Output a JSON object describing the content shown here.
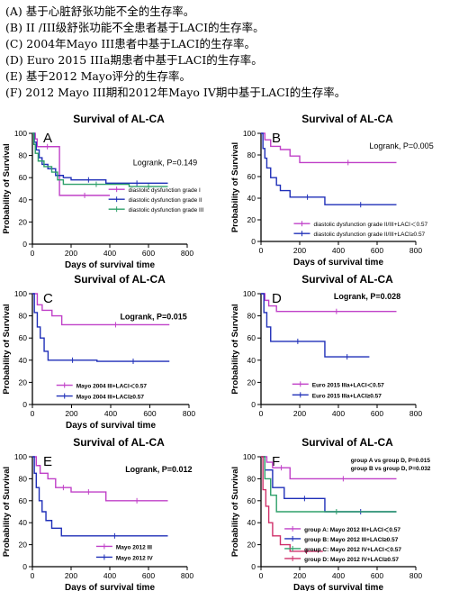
{
  "captions": [
    "(A) 基于心脏舒张功能不全的生存率。",
    "(B) II /III级舒张功能不全患者基于LACI的生存率。",
    "(C) 2004年Mayo III患者中基于LACI的生存率。",
    "(D) Euro 2015 IIIa期患者中基于LACI的生存率。",
    "(E) 基于2012 Mayo评分的生存率。",
    "(F) 2012 Mayo III期和2012年Mayo IV期中基于LACI的生存率。"
  ],
  "colors": {
    "magenta": "#c040c8",
    "blue": "#1f2fb8",
    "green": "#2ea06a",
    "crimson": "#d0306a"
  },
  "chart_data": [
    {
      "panel": "A",
      "type": "line",
      "title": "Survival of AL-CA",
      "xlabel": "Days of survival time",
      "ylabel": "Probability of Survival",
      "xlim": [
        0,
        800
      ],
      "ylim": [
        0,
        100
      ],
      "xticks": [
        "0",
        "200",
        "400",
        "600",
        "800"
      ],
      "yticks": [
        "0",
        "20",
        "40",
        "60",
        "80",
        "100"
      ],
      "annotation": "Logrank, P=0.149",
      "series": [
        {
          "name": "diastolic dysfunction grade I",
          "color": "#c040c8",
          "x": [
            0,
            15,
            25,
            130,
            140,
            400
          ],
          "y": [
            100,
            95,
            88,
            88,
            44,
            44
          ]
        },
        {
          "name": "diastolic dysfunction grade II",
          "color": "#1f2fb8",
          "x": [
            0,
            10,
            20,
            35,
            50,
            80,
            120,
            160,
            200,
            380,
            700
          ],
          "y": [
            100,
            92,
            85,
            78,
            72,
            68,
            62,
            60,
            58,
            55,
            55
          ]
        },
        {
          "name": "diastolic dysfunction grade III",
          "color": "#2ea06a",
          "x": [
            0,
            8,
            15,
            30,
            60,
            100,
            130,
            160,
            500,
            700
          ],
          "y": [
            100,
            90,
            82,
            75,
            70,
            65,
            58,
            54,
            52,
            52
          ]
        }
      ]
    },
    {
      "panel": "B",
      "type": "line",
      "title": "Survival of AL-CA",
      "xlabel": "Days of survival time",
      "ylabel": "Probability of Survival",
      "xlim": [
        0,
        800
      ],
      "ylim": [
        0,
        100
      ],
      "xticks": [
        "0",
        "200",
        "400",
        "600",
        "800"
      ],
      "yticks": [
        "0",
        "20",
        "40",
        "60",
        "80",
        "100"
      ],
      "annotation": "Logrank, P=0.005",
      "series": [
        {
          "name": "diastolic dysfunction grade II/III+LACI＜0.57",
          "color": "#c040c8",
          "x": [
            0,
            20,
            50,
            100,
            150,
            200,
            700
          ],
          "y": [
            100,
            94,
            88,
            85,
            79,
            73,
            73
          ]
        },
        {
          "name": "diastolic dysfunction grade II/III+LACI≥0.57",
          "color": "#1f2fb8",
          "x": [
            0,
            10,
            20,
            30,
            50,
            80,
            100,
            150,
            330,
            700
          ],
          "y": [
            100,
            86,
            77,
            68,
            59,
            52,
            47,
            41,
            34,
            34
          ]
        }
      ]
    },
    {
      "panel": "C",
      "type": "line",
      "title": "Survival of AL-CA",
      "xlabel": "Days of survival time",
      "ylabel": "Probability of Survival",
      "xlim": [
        0,
        800
      ],
      "ylim": [
        0,
        100
      ],
      "xticks": [
        "0",
        "200",
        "400",
        "600",
        "800"
      ],
      "yticks": [
        "0",
        "20",
        "40",
        "60",
        "80",
        "100"
      ],
      "annotation": "Logrank,  P=0.015",
      "series": [
        {
          "name": "Mayo 2004 III+LACI＜0.57",
          "color": "#c040c8",
          "x": [
            0,
            25,
            50,
            100,
            150,
            700
          ],
          "y": [
            100,
            90,
            85,
            80,
            72,
            72
          ]
        },
        {
          "name": "Mayo 2004 III+LACI≥0.57",
          "color": "#1f2fb8",
          "x": [
            0,
            10,
            25,
            40,
            60,
            80,
            330,
            700
          ],
          "y": [
            100,
            83,
            70,
            60,
            48,
            40,
            39,
            39
          ]
        }
      ]
    },
    {
      "panel": "D",
      "type": "line",
      "title": "Survival of AL-CA",
      "xlabel": "",
      "ylabel": "Probability of Survival",
      "xlim": [
        0,
        800
      ],
      "ylim": [
        0,
        100
      ],
      "xticks": [
        "0",
        "200",
        "400",
        "600",
        "800"
      ],
      "yticks": [
        "0",
        "20",
        "40",
        "60",
        "80",
        "100"
      ],
      "annotation": "Logrank, P=0.028",
      "series": [
        {
          "name": "Euro 2015 IIIa+LACI＜0.57",
          "color": "#c040c8",
          "x": [
            0,
            20,
            40,
            80,
            700
          ],
          "y": [
            100,
            94,
            89,
            84,
            84
          ]
        },
        {
          "name": "Euro 2015 IIIa+LACI≥0.57",
          "color": "#1f2fb8",
          "x": [
            0,
            15,
            30,
            50,
            330,
            560
          ],
          "y": [
            100,
            83,
            70,
            57,
            43,
            43
          ]
        }
      ]
    },
    {
      "panel": "E",
      "type": "line",
      "title": "Survival of AL-CA",
      "xlabel": "Days of survival time",
      "ylabel": "Probability of Survival",
      "xlim": [
        0,
        800
      ],
      "ylim": [
        0,
        100
      ],
      "xticks": [
        "0",
        "200",
        "400",
        "600",
        "800"
      ],
      "yticks": [
        "0",
        "20",
        "40",
        "60",
        "80",
        "100"
      ],
      "annotation": "Logrank, P=0.012",
      "series": [
        {
          "name": "Mayo 2012 III",
          "color": "#c040c8",
          "x": [
            0,
            20,
            40,
            80,
            120,
            200,
            380,
            700
          ],
          "y": [
            100,
            92,
            85,
            80,
            72,
            68,
            60,
            60
          ]
        },
        {
          "name": "Mayo 2012 IV",
          "color": "#1f2fb8",
          "x": [
            0,
            10,
            20,
            35,
            50,
            70,
            100,
            150,
            700
          ],
          "y": [
            100,
            85,
            72,
            60,
            50,
            42,
            35,
            28,
            28
          ]
        }
      ]
    },
    {
      "panel": "F",
      "type": "line",
      "title": "Survival of AL-CA",
      "xlabel": "Days of survival time",
      "ylabel": "Probability of Survival",
      "xlim": [
        0,
        800
      ],
      "ylim": [
        0,
        100
      ],
      "xticks": [
        "0",
        "200",
        "400",
        "600",
        "800"
      ],
      "yticks": [
        "0",
        "20",
        "40",
        "60",
        "80",
        "100"
      ],
      "annotations": [
        "group A vs group D, P=0.015",
        "group B vs group D, P=0.032"
      ],
      "series": [
        {
          "name": "group A: Mayo 2012 III+LACI＜0.57",
          "color": "#c040c8",
          "x": [
            0,
            30,
            60,
            150,
            700
          ],
          "y": [
            100,
            95,
            90,
            80,
            80
          ]
        },
        {
          "name": "group B: Mayo 2012 III+LACI≥0.57",
          "color": "#1f2fb8",
          "x": [
            0,
            20,
            60,
            120,
            330,
            700
          ],
          "y": [
            100,
            88,
            72,
            62,
            50,
            50
          ]
        },
        {
          "name": "group C: Mayo 2012 IV+LACI＜0.57",
          "color": "#2ea06a",
          "x": [
            0,
            20,
            50,
            80,
            700
          ],
          "y": [
            100,
            80,
            65,
            50,
            50
          ]
        },
        {
          "name": "group D: Mayo 2012 IV+LACI≥0.57",
          "color": "#d0306a",
          "x": [
            0,
            10,
            25,
            40,
            60,
            100,
            150,
            320
          ],
          "y": [
            100,
            70,
            55,
            40,
            28,
            20,
            14,
            14
          ]
        }
      ]
    }
  ]
}
